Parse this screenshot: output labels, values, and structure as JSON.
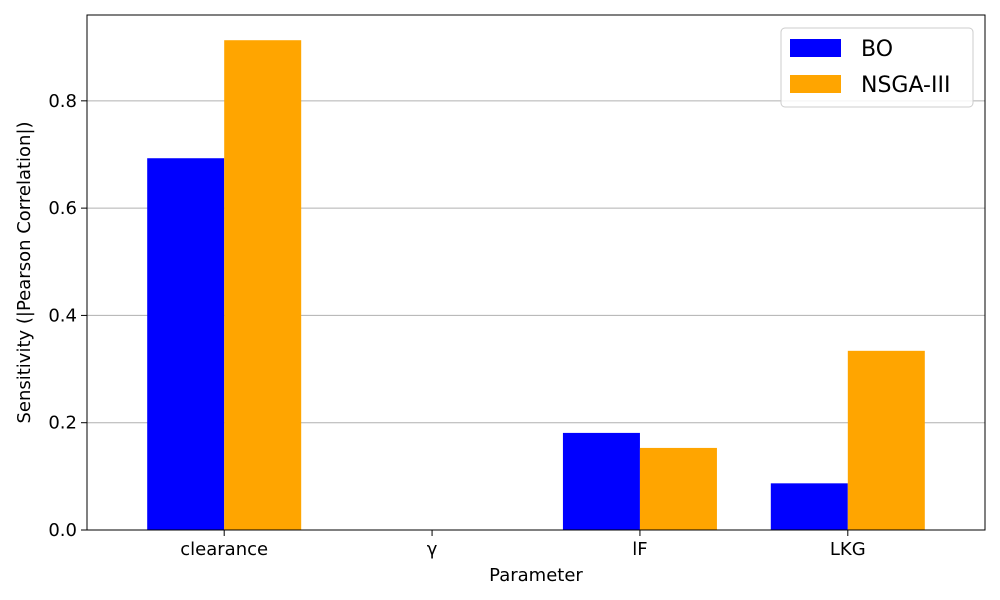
{
  "chart_data": {
    "type": "bar",
    "title": "",
    "xlabel": "Parameter",
    "ylabel": "Sensitivity (|Pearson Correlation|)",
    "categories": [
      "clearance",
      "γ",
      "lF",
      "LKG"
    ],
    "series": [
      {
        "name": "BO",
        "color": "#0000ff",
        "values": [
          0.693,
          0.0,
          0.181,
          0.087
        ]
      },
      {
        "name": "NSGA-III",
        "color": "#ffa500",
        "values": [
          0.913,
          0.0,
          0.153,
          0.334
        ]
      }
    ],
    "ylim": [
      0,
      0.96
    ],
    "yticks": [
      0.0,
      0.2,
      0.4,
      0.6,
      0.8
    ],
    "ytick_labels": [
      "0.0",
      "0.2",
      "0.4",
      "0.6",
      "0.8"
    ],
    "grid": "y-major",
    "legend_position": "top-right"
  }
}
